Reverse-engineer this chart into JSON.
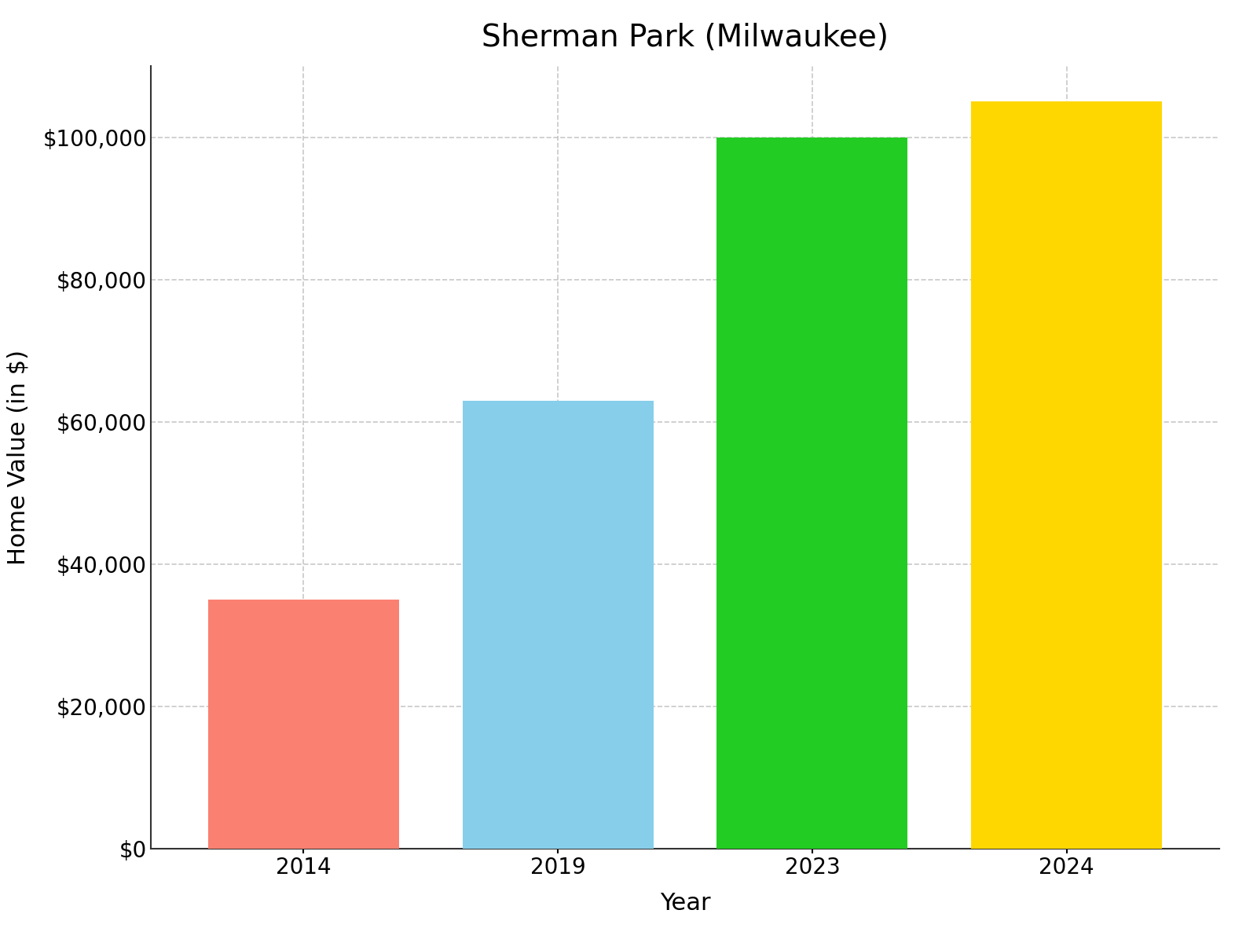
{
  "title": "Sherman Park (Milwaukee)",
  "categories": [
    "2014",
    "2019",
    "2023",
    "2024"
  ],
  "values": [
    35000,
    63000,
    100000,
    105000
  ],
  "bar_colors": [
    "#FA8072",
    "#87CEEB",
    "#22CC22",
    "#FFD700"
  ],
  "xlabel": "Year",
  "ylabel": "Home Value (in $)",
  "ylim": [
    0,
    110000
  ],
  "yticks": [
    0,
    20000,
    40000,
    60000,
    80000,
    100000
  ],
  "background_color": "#FFFFFF",
  "title_fontsize": 28,
  "axis_label_fontsize": 22,
  "tick_fontsize": 20,
  "bar_width": 0.75,
  "grid_color": "#BBBBBB",
  "grid_style": "--",
  "grid_alpha": 0.8
}
